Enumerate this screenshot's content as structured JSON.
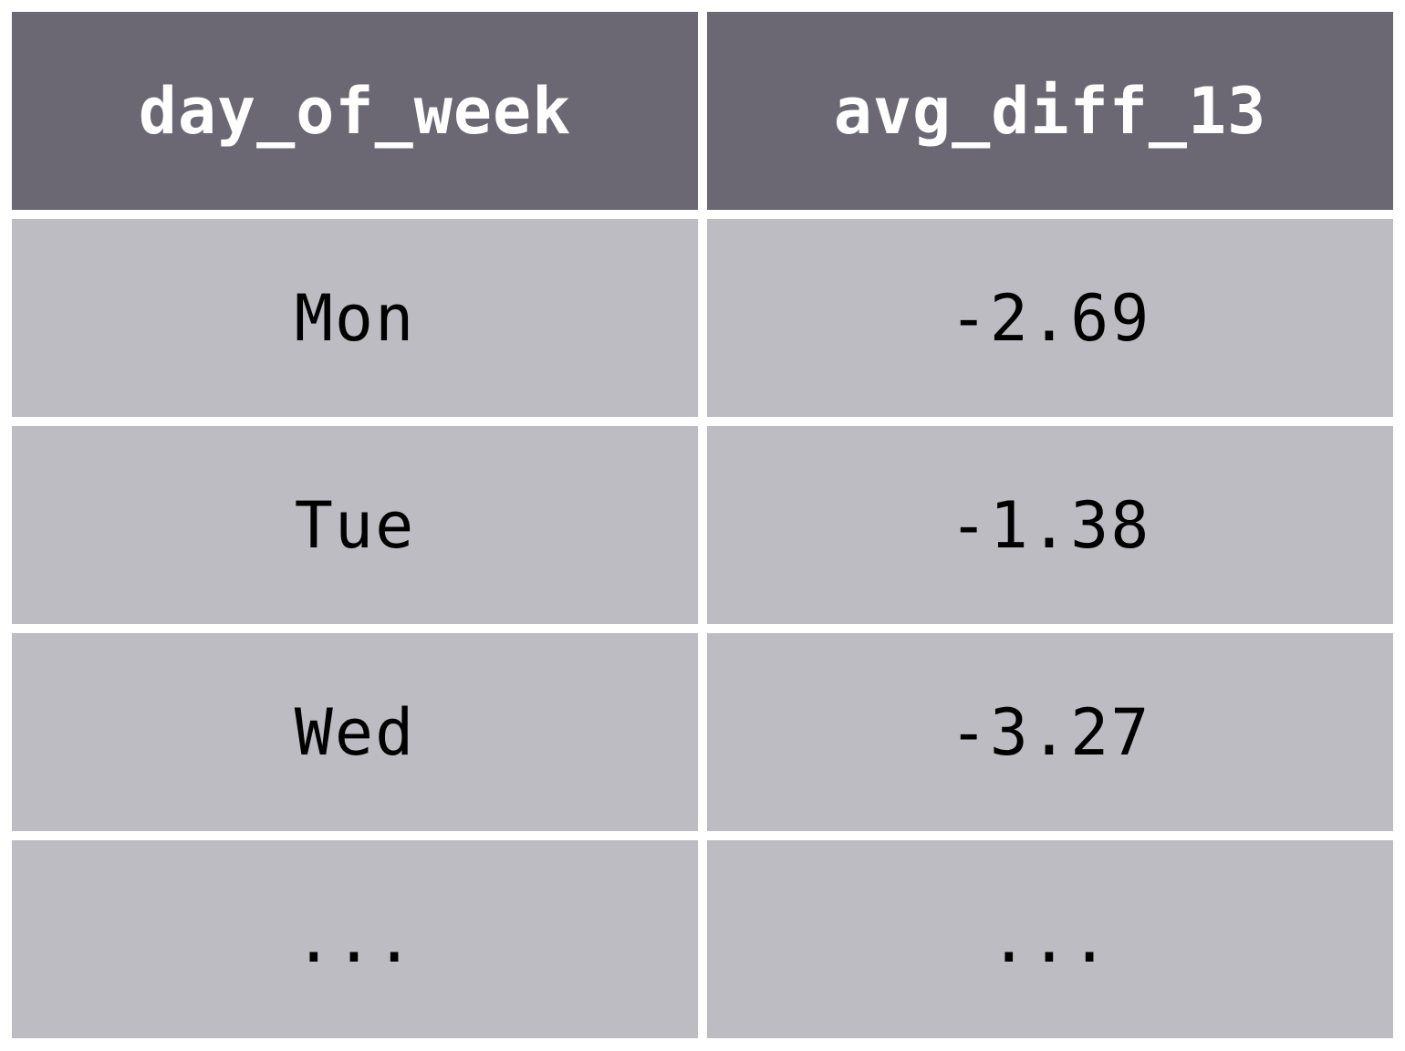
{
  "table": {
    "headers": [
      "day_of_week",
      "avg_diff_13"
    ],
    "rows": [
      [
        "Mon",
        "-2.69"
      ],
      [
        "Tue",
        "-1.38"
      ],
      [
        "Wed",
        "-3.27"
      ],
      [
        "...",
        "..."
      ]
    ]
  },
  "colors": {
    "header_bg": "#6b6873",
    "header_text": "#ffffff",
    "cell_bg": "#bdbcc2",
    "cell_text": "#000000",
    "grid_lines": "#ffffff"
  }
}
